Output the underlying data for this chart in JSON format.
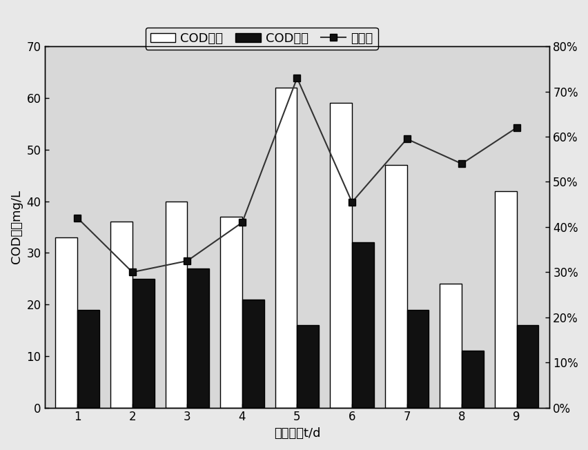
{
  "days": [
    1,
    2,
    3,
    4,
    5,
    6,
    7,
    8,
    9
  ],
  "cod_in": [
    33,
    36,
    40,
    37,
    62,
    59,
    47,
    24,
    42
  ],
  "cod_out": [
    19,
    25,
    27,
    21,
    16,
    32,
    19,
    11,
    16
  ],
  "removal_rate": [
    0.42,
    0.3,
    0.325,
    0.41,
    0.73,
    0.455,
    0.595,
    0.54,
    0.62
  ],
  "ylabel_left": "COD浓度mg/L",
  "xlabel": "运行天数t/d",
  "ylim_left": [
    0,
    70
  ],
  "ylim_right": [
    0,
    0.8
  ],
  "yticks_left": [
    0,
    10,
    20,
    30,
    40,
    50,
    60,
    70
  ],
  "yticks_right": [
    0.0,
    0.1,
    0.2,
    0.3,
    0.4,
    0.5,
    0.6,
    0.7,
    0.8
  ],
  "ytick_right_labels": [
    "0%",
    "10%",
    "20%",
    "30%",
    "40%",
    "50%",
    "60%",
    "70%",
    "80%"
  ],
  "legend_labels": [
    "COD进水",
    "COD出水",
    "去除率"
  ],
  "bar_width": 0.4,
  "color_in": "#ffffff",
  "color_out": "#111111",
  "color_line": "#333333",
  "edge_color": "#000000",
  "plot_bg": "#d8d8d8",
  "fig_bg": "#e8e8e8",
  "label_fontsize": 13,
  "tick_fontsize": 12,
  "legend_fontsize": 13
}
